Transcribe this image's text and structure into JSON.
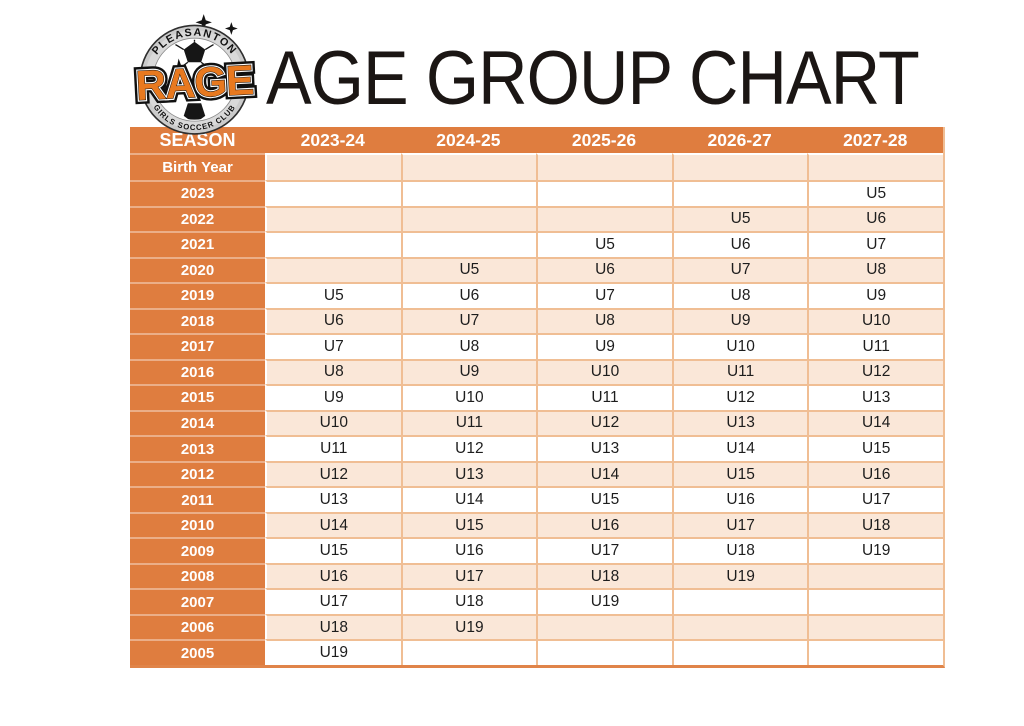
{
  "logo": {
    "club_top": "PLEASANTON",
    "club_name": "RAGE",
    "club_bottom": "GIRLS SOCCER CLUB"
  },
  "title": "AGE GROUP CHART",
  "chart_data": {
    "type": "table",
    "title": "AGE GROUP CHART",
    "columns": [
      "SEASON",
      "2023-24",
      "2024-25",
      "2025-26",
      "2026-27",
      "2027-28"
    ],
    "row_header_label": "Birth Year",
    "rows": [
      {
        "birth_year": "2023",
        "age_groups": [
          "",
          "",
          "",
          "",
          "U5"
        ]
      },
      {
        "birth_year": "2022",
        "age_groups": [
          "",
          "",
          "",
          "U5",
          "U6"
        ]
      },
      {
        "birth_year": "2021",
        "age_groups": [
          "",
          "",
          "U5",
          "U6",
          "U7"
        ]
      },
      {
        "birth_year": "2020",
        "age_groups": [
          "",
          "U5",
          "U6",
          "U7",
          "U8"
        ]
      },
      {
        "birth_year": "2019",
        "age_groups": [
          "U5",
          "U6",
          "U7",
          "U8",
          "U9"
        ]
      },
      {
        "birth_year": "2018",
        "age_groups": [
          "U6",
          "U7",
          "U8",
          "U9",
          "U10"
        ]
      },
      {
        "birth_year": "2017",
        "age_groups": [
          "U7",
          "U8",
          "U9",
          "U10",
          "U11"
        ]
      },
      {
        "birth_year": "2016",
        "age_groups": [
          "U8",
          "U9",
          "U10",
          "U11",
          "U12"
        ]
      },
      {
        "birth_year": "2015",
        "age_groups": [
          "U9",
          "U10",
          "U11",
          "U12",
          "U13"
        ]
      },
      {
        "birth_year": "2014",
        "age_groups": [
          "U10",
          "U11",
          "U12",
          "U13",
          "U14"
        ]
      },
      {
        "birth_year": "2013",
        "age_groups": [
          "U11",
          "U12",
          "U13",
          "U14",
          "U15"
        ]
      },
      {
        "birth_year": "2012",
        "age_groups": [
          "U12",
          "U13",
          "U14",
          "U15",
          "U16"
        ]
      },
      {
        "birth_year": "2011",
        "age_groups": [
          "U13",
          "U14",
          "U15",
          "U16",
          "U17"
        ]
      },
      {
        "birth_year": "2010",
        "age_groups": [
          "U14",
          "U15",
          "U16",
          "U17",
          "U18"
        ]
      },
      {
        "birth_year": "2009",
        "age_groups": [
          "U15",
          "U16",
          "U17",
          "U18",
          "U19"
        ]
      },
      {
        "birth_year": "2008",
        "age_groups": [
          "U16",
          "U17",
          "U18",
          "U19",
          ""
        ]
      },
      {
        "birth_year": "2007",
        "age_groups": [
          "U17",
          "U18",
          "U19",
          "",
          ""
        ]
      },
      {
        "birth_year": "2006",
        "age_groups": [
          "U18",
          "U19",
          "",
          "",
          ""
        ]
      },
      {
        "birth_year": "2005",
        "age_groups": [
          "U19",
          "",
          "",
          "",
          ""
        ]
      }
    ]
  },
  "colors": {
    "orange": "#df7d3f",
    "peach": "#fae7d8",
    "line": "#f0be94",
    "bottom-line": "#e08449",
    "rage": "#e8791f"
  }
}
